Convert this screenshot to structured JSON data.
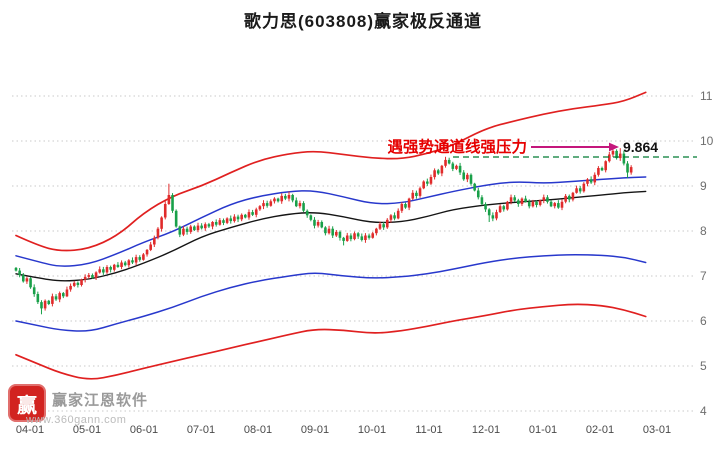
{
  "title": "歌力思(603808)赢家极反通道",
  "annotation": {
    "pressure_text": "遇强势通道线强压力",
    "price_label": "9.864",
    "text_color": "#e60000",
    "arrow_color": "#c4177c",
    "dash_color": "#007a33"
  },
  "watermark": {
    "brand": "赢家江恩软件",
    "url": "www.360gann.com",
    "logo_char": "赢"
  },
  "chart_data": {
    "type": "candlestick",
    "title": "歌力思(603808)赢家极反通道",
    "ylim": [
      4,
      11
    ],
    "y_ticks": [
      11,
      10,
      9,
      8,
      7,
      6,
      5,
      4
    ],
    "x_ticks": [
      "04-01",
      "05-01",
      "06-01",
      "07-01",
      "08-01",
      "09-01",
      "10-01",
      "11-01",
      "12-01",
      "01-01",
      "02-01",
      "03-01"
    ],
    "grid": "dotted-horizontal",
    "legend": "none",
    "pressure_level": 9.864,
    "colors": {
      "up": "#e02b2b",
      "down": "#19a049",
      "channel_red": "#e02020",
      "channel_blue": "#2838cc",
      "channel_black": "#151515",
      "grid": "#c9c9c9"
    },
    "first_open": 7.18,
    "closes": [
      7.12,
      7.02,
      6.88,
      6.95,
      6.75,
      6.6,
      6.42,
      6.28,
      6.45,
      6.38,
      6.55,
      6.48,
      6.62,
      6.55,
      6.7,
      6.78,
      6.85,
      6.8,
      6.92,
      6.98,
      7.02,
      6.96,
      7.08,
      7.15,
      7.08,
      7.2,
      7.14,
      7.25,
      7.2,
      7.3,
      7.24,
      7.35,
      7.3,
      7.42,
      7.36,
      7.48,
      7.58,
      7.7,
      7.85,
      8.05,
      8.3,
      8.6,
      8.8,
      8.45,
      8.1,
      7.92,
      8.05,
      7.98,
      8.1,
      8.02,
      8.12,
      8.06,
      8.15,
      8.1,
      8.2,
      8.14,
      8.24,
      8.18,
      8.28,
      8.22,
      8.32,
      8.26,
      8.36,
      8.3,
      8.42,
      8.36,
      8.48,
      8.55,
      8.62,
      8.56,
      8.66,
      8.72,
      8.66,
      8.78,
      8.72,
      8.8,
      8.68,
      8.55,
      8.62,
      8.45,
      8.35,
      8.25,
      8.12,
      8.2,
      8.08,
      7.95,
      8.05,
      7.9,
      7.98,
      7.85,
      7.78,
      7.9,
      7.82,
      7.95,
      7.88,
      7.8,
      7.9,
      7.85,
      7.95,
      8.05,
      8.15,
      8.08,
      8.25,
      8.35,
      8.28,
      8.45,
      8.6,
      8.52,
      8.72,
      8.85,
      8.78,
      8.95,
      9.1,
      9.05,
      9.2,
      9.35,
      9.28,
      9.45,
      9.58,
      9.5,
      9.38,
      9.45,
      9.3,
      9.15,
      9.25,
      9.05,
      8.9,
      8.75,
      8.6,
      8.48,
      8.35,
      8.28,
      8.42,
      8.55,
      8.48,
      8.65,
      8.75,
      8.68,
      8.6,
      8.72,
      8.65,
      8.55,
      8.65,
      8.58,
      8.68,
      8.75,
      8.65,
      8.55,
      8.62,
      8.52,
      8.65,
      8.78,
      8.7,
      8.85,
      8.95,
      8.88,
      9.05,
      9.15,
      9.08,
      9.25,
      9.4,
      9.35,
      9.55,
      9.7,
      9.78,
      9.62,
      9.72,
      9.5,
      9.3,
      9.42
    ],
    "wick_overrides": {
      "7": {
        "low": 6.15
      },
      "42": {
        "high": 9.05
      },
      "75": {
        "high": 8.88
      },
      "90": {
        "low": 7.68
      },
      "118": {
        "high": 9.65
      },
      "130": {
        "low": 8.2
      },
      "164": {
        "high": 9.86
      },
      "166": {
        "high": 9.84
      },
      "168": {
        "low": 9.18
      }
    },
    "channel_lines": [
      {
        "name": "upper-extreme-red",
        "color": "#e02020",
        "width": 1.7,
        "anchors": [
          [
            0,
            7.9
          ],
          [
            6,
            7.68
          ],
          [
            12,
            7.55
          ],
          [
            20,
            7.6
          ],
          [
            28,
            7.9
          ],
          [
            35,
            8.4
          ],
          [
            43,
            8.78
          ],
          [
            51,
            9.0
          ],
          [
            59,
            9.3
          ],
          [
            67,
            9.58
          ],
          [
            75,
            9.72
          ],
          [
            82,
            9.78
          ],
          [
            90,
            9.7
          ],
          [
            98,
            9.62
          ],
          [
            106,
            9.6
          ],
          [
            113,
            9.72
          ],
          [
            120,
            9.9
          ],
          [
            129,
            10.28
          ],
          [
            137,
            10.45
          ],
          [
            145,
            10.6
          ],
          [
            153,
            10.72
          ],
          [
            161,
            10.8
          ],
          [
            167,
            10.88
          ],
          [
            173,
            11.08
          ]
        ]
      },
      {
        "name": "upper-blue",
        "color": "#2838cc",
        "width": 1.5,
        "anchors": [
          [
            0,
            7.45
          ],
          [
            6,
            7.32
          ],
          [
            12,
            7.2
          ],
          [
            20,
            7.26
          ],
          [
            28,
            7.5
          ],
          [
            35,
            7.75
          ],
          [
            43,
            7.98
          ],
          [
            51,
            8.3
          ],
          [
            59,
            8.6
          ],
          [
            67,
            8.78
          ],
          [
            75,
            8.88
          ],
          [
            82,
            8.9
          ],
          [
            90,
            8.76
          ],
          [
            98,
            8.6
          ],
          [
            106,
            8.62
          ],
          [
            113,
            8.75
          ],
          [
            120,
            8.88
          ],
          [
            129,
            9.02
          ],
          [
            137,
            9.1
          ],
          [
            145,
            9.06
          ],
          [
            153,
            9.1
          ],
          [
            161,
            9.15
          ],
          [
            167,
            9.18
          ],
          [
            173,
            9.2
          ]
        ]
      },
      {
        "name": "middle-black",
        "color": "#151515",
        "width": 1.4,
        "anchors": [
          [
            0,
            7.05
          ],
          [
            6,
            6.96
          ],
          [
            12,
            6.88
          ],
          [
            20,
            6.92
          ],
          [
            28,
            7.08
          ],
          [
            35,
            7.28
          ],
          [
            43,
            7.55
          ],
          [
            51,
            7.88
          ],
          [
            59,
            8.08
          ],
          [
            67,
            8.26
          ],
          [
            75,
            8.38
          ],
          [
            82,
            8.42
          ],
          [
            90,
            8.32
          ],
          [
            98,
            8.18
          ],
          [
            106,
            8.2
          ],
          [
            113,
            8.32
          ],
          [
            120,
            8.48
          ],
          [
            129,
            8.58
          ],
          [
            137,
            8.64
          ],
          [
            145,
            8.68
          ],
          [
            153,
            8.74
          ],
          [
            161,
            8.8
          ],
          [
            167,
            8.85
          ],
          [
            173,
            8.88
          ]
        ]
      },
      {
        "name": "lower-blue",
        "color": "#2838cc",
        "width": 1.5,
        "anchors": [
          [
            0,
            6.0
          ],
          [
            6,
            5.9
          ],
          [
            12,
            5.8
          ],
          [
            20,
            5.76
          ],
          [
            28,
            5.95
          ],
          [
            35,
            6.1
          ],
          [
            43,
            6.3
          ],
          [
            51,
            6.55
          ],
          [
            59,
            6.75
          ],
          [
            67,
            6.9
          ],
          [
            75,
            7.0
          ],
          [
            82,
            7.08
          ],
          [
            90,
            7.0
          ],
          [
            98,
            6.95
          ],
          [
            106,
            6.98
          ],
          [
            113,
            7.05
          ],
          [
            120,
            7.15
          ],
          [
            129,
            7.3
          ],
          [
            137,
            7.4
          ],
          [
            145,
            7.45
          ],
          [
            153,
            7.48
          ],
          [
            161,
            7.46
          ],
          [
            167,
            7.42
          ],
          [
            173,
            7.3
          ]
        ]
      },
      {
        "name": "lower-extreme-red",
        "color": "#e02020",
        "width": 1.7,
        "anchors": [
          [
            0,
            5.25
          ],
          [
            6,
            5.05
          ],
          [
            12,
            4.85
          ],
          [
            20,
            4.68
          ],
          [
            28,
            4.8
          ],
          [
            35,
            4.95
          ],
          [
            43,
            5.1
          ],
          [
            51,
            5.25
          ],
          [
            59,
            5.4
          ],
          [
            67,
            5.55
          ],
          [
            75,
            5.7
          ],
          [
            82,
            5.82
          ],
          [
            90,
            5.8
          ],
          [
            98,
            5.72
          ],
          [
            106,
            5.78
          ],
          [
            113,
            5.88
          ],
          [
            120,
            6.0
          ],
          [
            129,
            6.12
          ],
          [
            137,
            6.25
          ],
          [
            145,
            6.32
          ],
          [
            153,
            6.38
          ],
          [
            161,
            6.35
          ],
          [
            167,
            6.25
          ],
          [
            173,
            6.1
          ]
        ]
      }
    ]
  }
}
